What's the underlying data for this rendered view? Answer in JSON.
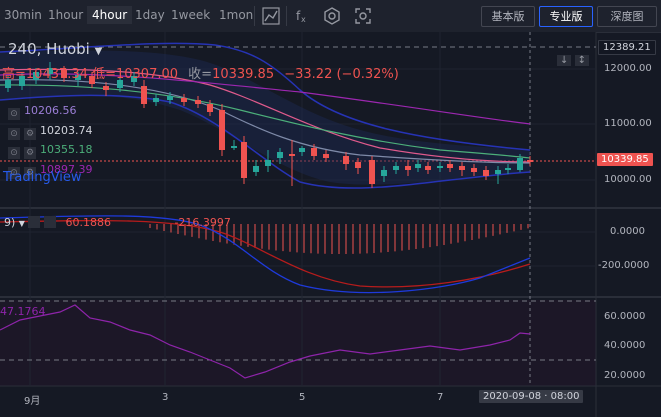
{
  "toolbar": {
    "timeframes": [
      "30min",
      "1hour",
      "4hour",
      "1day",
      "1week",
      "1mon"
    ],
    "active_timeframe": "4hour",
    "buttons": [
      "基本版",
      "专业版",
      "深度图"
    ],
    "active_button": "专业版",
    "icons": [
      "candle-style-icon",
      "indicator-icon",
      "settings-icon",
      "screenshot-icon"
    ]
  },
  "legend": {
    "symbol": "240, Huobi",
    "ohlc_prefix": "高=",
    "high": "10437.34",
    "low_label": "低=",
    "low": "10307.00",
    "close_label": "收=",
    "close": "10339.85",
    "change": "−33.22 (−0.32%)",
    "ma_values": [
      "10206.56",
      "10203.74",
      "10355.18",
      "10897.39"
    ],
    "watermark": "TradingView"
  },
  "macd": {
    "params": "9)",
    "value1": "60.1886",
    "value2": "-216.3997"
  },
  "rsi": {
    "value": "47.1764"
  },
  "price_axis": {
    "top_tag": "12389.21",
    "labels": [
      "12000.00",
      "11000.00",
      "10000.00"
    ],
    "current": "10339.85"
  },
  "macd_axis": {
    "labels": [
      "0.0000",
      "-200.0000"
    ]
  },
  "rsi_axis": {
    "labels": [
      "60.0000",
      "40.0000",
      "20.0000"
    ]
  },
  "time_axis": {
    "labels": [
      "9月",
      "3",
      "5",
      "7"
    ],
    "cursor": "2020-09-08 · 08:00"
  },
  "scale_buttons": [
    "↓",
    "↕"
  ],
  "colors": {
    "bg": "#151924",
    "up": "#26a69a",
    "down": "#ef5350",
    "accent": "#2962ff"
  }
}
